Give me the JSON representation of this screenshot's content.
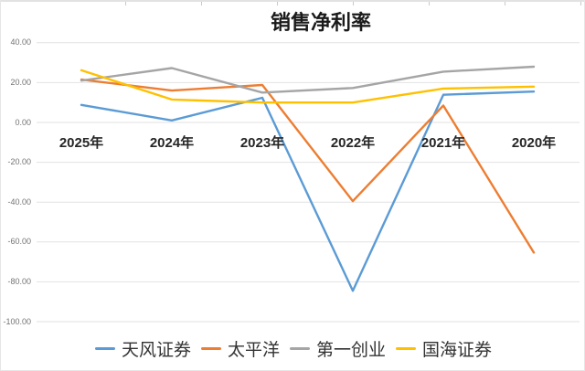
{
  "chart_data": {
    "type": "line",
    "title": "销售净利率",
    "categories": [
      "2025年",
      "2024年",
      "2023年",
      "2022年",
      "2021年",
      "2020年"
    ],
    "series": [
      {
        "name": "天风证券",
        "key": "tianfeng-securities",
        "color": "#5B9BD5",
        "values": [
          8.8,
          1.0,
          12.4,
          -84.5,
          13.9,
          15.5
        ]
      },
      {
        "name": "太平洋",
        "key": "pacific-securities",
        "color": "#ED7D31",
        "values": [
          21.5,
          16.0,
          18.8,
          -39.5,
          8.5,
          -65.3
        ]
      },
      {
        "name": "第一创业",
        "key": "first-capital",
        "color": "#A5A5A5",
        "values": [
          21.0,
          27.3,
          15.0,
          17.3,
          25.5,
          28.0
        ]
      },
      {
        "name": "国海证券",
        "key": "sealand-securities",
        "color": "#FFC000",
        "values": [
          26.2,
          11.5,
          10.0,
          10.0,
          17.0,
          18.0
        ]
      }
    ],
    "y_axis": {
      "min": -100,
      "max": 40,
      "step": 20,
      "tick_labels": [
        "40.00",
        "20.00",
        "0.00",
        "-20.00",
        "-40.00",
        "-60.00",
        "-80.00",
        "-100.00"
      ]
    },
    "grid": "horizontal-only",
    "legend_position": "bottom",
    "colors": {
      "gridline": "#E2E2E2",
      "tick_label": "#737373",
      "category_label": "#262626",
      "title": "#1A1A1A",
      "background": "#FFFFFF"
    }
  }
}
